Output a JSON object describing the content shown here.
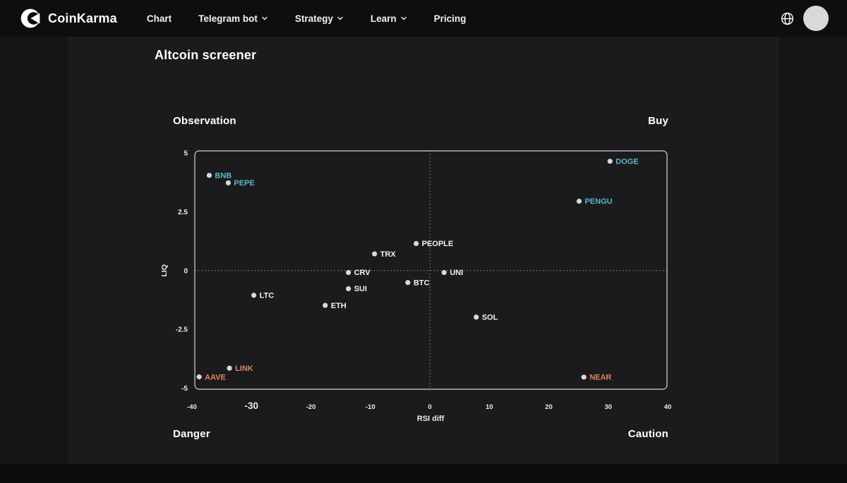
{
  "header": {
    "brand": "CoinKarma",
    "nav_items": [
      {
        "label": "Chart",
        "has_dropdown": false
      },
      {
        "label": "Telegram bot",
        "has_dropdown": true
      },
      {
        "label": "Strategy",
        "has_dropdown": true
      },
      {
        "label": "Learn",
        "has_dropdown": true
      },
      {
        "label": "Pricing",
        "has_dropdown": false
      }
    ],
    "icons": {
      "globe": "globe-icon",
      "avatar": "user-avatar"
    }
  },
  "page": {
    "title": "Altcoin screener"
  },
  "quadrants": {
    "top_left": "Observation",
    "top_right": "Buy",
    "bottom_left": "Danger",
    "bottom_right": "Caution"
  },
  "chart_data": {
    "type": "scatter",
    "xlabel": "RSI diff",
    "ylabel": "LIQ",
    "xlim": [
      -40,
      40
    ],
    "ylim": [
      -5,
      5
    ],
    "x_ticks": [
      -40,
      -30,
      -20,
      -10,
      0,
      10,
      20,
      30,
      40
    ],
    "x_tick_emphasized": -30,
    "y_ticks": [
      5,
      2.5,
      0,
      -2.5,
      -5
    ],
    "grid": "dotted-zero-crosshair",
    "colors": {
      "buy": "#57b8c5",
      "neutral": "#f2f2f2",
      "caution": "#e0855e",
      "dot": "#d9d9d9",
      "frame": "#d4d4d4",
      "tick_text": "#ececec",
      "gridline": "#8f8f8f"
    },
    "points": [
      {
        "label": "DOGE",
        "x": 30.3,
        "y": 4.65,
        "category": "buy"
      },
      {
        "label": "BNB",
        "x": -37.1,
        "y": 4.05,
        "category": "buy"
      },
      {
        "label": "PEPE",
        "x": -33.9,
        "y": 3.73,
        "category": "buy"
      },
      {
        "label": "PENGU",
        "x": 25.1,
        "y": 2.95,
        "category": "buy"
      },
      {
        "label": "PEOPLE",
        "x": -2.3,
        "y": 1.15,
        "category": "neutral"
      },
      {
        "label": "TRX",
        "x": -9.3,
        "y": 0.71,
        "category": "neutral"
      },
      {
        "label": "CRV",
        "x": -13.7,
        "y": -0.08,
        "category": "neutral"
      },
      {
        "label": "UNI",
        "x": 2.4,
        "y": -0.08,
        "category": "neutral"
      },
      {
        "label": "BTC",
        "x": -3.7,
        "y": -0.51,
        "category": "neutral"
      },
      {
        "label": "SUI",
        "x": -13.7,
        "y": -0.77,
        "category": "neutral"
      },
      {
        "label": "LTC",
        "x": -29.6,
        "y": -1.05,
        "category": "neutral"
      },
      {
        "label": "ETH",
        "x": -17.6,
        "y": -1.48,
        "category": "neutral"
      },
      {
        "label": "SOL",
        "x": 7.8,
        "y": -1.98,
        "category": "neutral"
      },
      {
        "label": "LINK",
        "x": -33.7,
        "y": -4.15,
        "category": "caution"
      },
      {
        "label": "AAVE",
        "x": -38.8,
        "y": -4.52,
        "category": "caution"
      },
      {
        "label": "NEAR",
        "x": 25.9,
        "y": -4.53,
        "category": "caution"
      }
    ]
  }
}
